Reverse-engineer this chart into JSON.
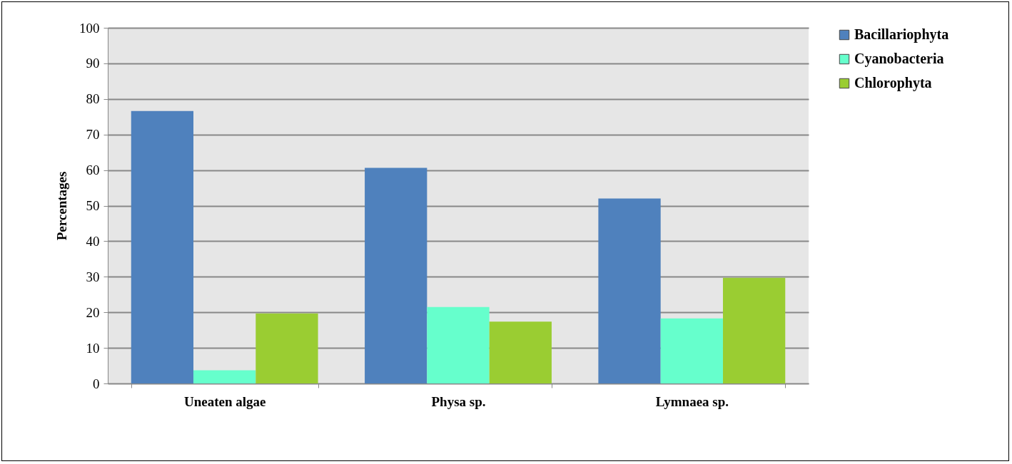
{
  "chart_data": {
    "type": "bar",
    "ylabel": "Percentages",
    "categories": [
      "Uneaten algae",
      "Physa sp.",
      "Lymnaea sp."
    ],
    "series": [
      {
        "name": "Bacillariophyta",
        "color": "#4f81bd",
        "values": [
          76.6,
          60.6,
          52.0
        ]
      },
      {
        "name": "Cyanobacteria",
        "color": "#66ffcc",
        "values": [
          3.7,
          21.5,
          18.3
        ]
      },
      {
        "name": "Chlorophyta",
        "color": "#9acd32",
        "values": [
          19.7,
          17.4,
          29.7
        ]
      }
    ],
    "ylim": [
      0,
      100
    ],
    "yticks": [
      0,
      10,
      20,
      30,
      40,
      50,
      60,
      70,
      80,
      90,
      100
    ],
    "grid": "y",
    "legend": "right"
  }
}
